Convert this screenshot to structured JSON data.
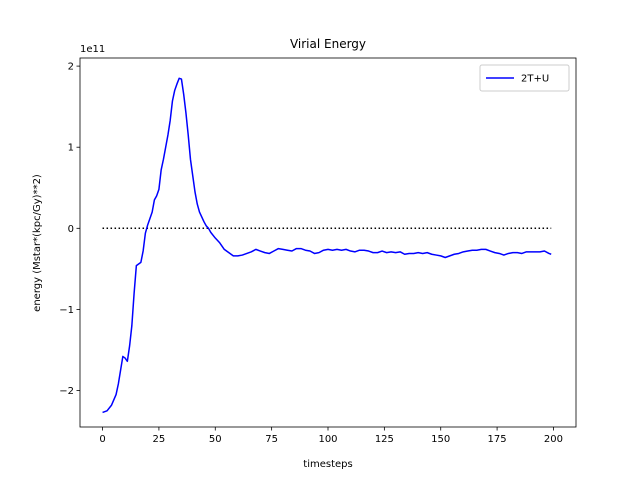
{
  "chart_data": {
    "type": "line",
    "title": "Virial Energy",
    "xlabel": "timesteps",
    "ylabel": "energy (Mstar*(kpc/Gy)**2)",
    "offset_text": "1e11",
    "xlim": [
      -10,
      210
    ],
    "ylim": [
      -2.45,
      2.1
    ],
    "x_ticks": [
      0,
      25,
      50,
      75,
      100,
      125,
      150,
      175,
      200
    ],
    "x_tick_labels": [
      "0",
      "25",
      "50",
      "75",
      "100",
      "125",
      "150",
      "175",
      "200"
    ],
    "y_ticks": [
      -2,
      -1,
      0,
      1,
      2
    ],
    "y_tick_labels": [
      "−2",
      "−1",
      "0",
      "1",
      "2"
    ],
    "grid": false,
    "legend_position": "top-right",
    "series": [
      {
        "name": "2T+U",
        "color": "#0000ff",
        "style": "solid",
        "points": [
          [
            0,
            -2.27
          ],
          [
            2,
            -2.25
          ],
          [
            4,
            -2.18
          ],
          [
            6,
            -2.05
          ],
          [
            7,
            -1.92
          ],
          [
            8,
            -1.75
          ],
          [
            9,
            -1.58
          ],
          [
            10,
            -1.6
          ],
          [
            11,
            -1.64
          ],
          [
            12,
            -1.45
          ],
          [
            13,
            -1.2
          ],
          [
            14,
            -0.8
          ],
          [
            15,
            -0.46
          ],
          [
            17,
            -0.42
          ],
          [
            18,
            -0.28
          ],
          [
            19,
            -0.06
          ],
          [
            20,
            0.04
          ],
          [
            21,
            0.12
          ],
          [
            22,
            0.2
          ],
          [
            23,
            0.35
          ],
          [
            24,
            0.4
          ],
          [
            25,
            0.48
          ],
          [
            26,
            0.72
          ],
          [
            27,
            0.85
          ],
          [
            28,
            1.0
          ],
          [
            29,
            1.15
          ],
          [
            30,
            1.33
          ],
          [
            31,
            1.57
          ],
          [
            32,
            1.7
          ],
          [
            33,
            1.78
          ],
          [
            34,
            1.85
          ],
          [
            35,
            1.84
          ],
          [
            36,
            1.65
          ],
          [
            37,
            1.42
          ],
          [
            38,
            1.15
          ],
          [
            39,
            0.85
          ],
          [
            40,
            0.65
          ],
          [
            41,
            0.45
          ],
          [
            42,
            0.3
          ],
          [
            43,
            0.2
          ],
          [
            44,
            0.14
          ],
          [
            45,
            0.08
          ],
          [
            46,
            0.03
          ],
          [
            47,
            0.0
          ],
          [
            48,
            -0.05
          ],
          [
            50,
            -0.12
          ],
          [
            52,
            -0.18
          ],
          [
            54,
            -0.26
          ],
          [
            56,
            -0.3
          ],
          [
            58,
            -0.34
          ],
          [
            60,
            -0.34
          ],
          [
            62,
            -0.33
          ],
          [
            64,
            -0.31
          ],
          [
            66,
            -0.29
          ],
          [
            68,
            -0.26
          ],
          [
            70,
            -0.28
          ],
          [
            72,
            -0.3
          ],
          [
            74,
            -0.31
          ],
          [
            76,
            -0.28
          ],
          [
            78,
            -0.25
          ],
          [
            80,
            -0.26
          ],
          [
            82,
            -0.27
          ],
          [
            84,
            -0.28
          ],
          [
            86,
            -0.25
          ],
          [
            88,
            -0.25
          ],
          [
            90,
            -0.27
          ],
          [
            92,
            -0.28
          ],
          [
            94,
            -0.31
          ],
          [
            96,
            -0.3
          ],
          [
            98,
            -0.27
          ],
          [
            100,
            -0.26
          ],
          [
            102,
            -0.27
          ],
          [
            104,
            -0.26
          ],
          [
            106,
            -0.27
          ],
          [
            108,
            -0.26
          ],
          [
            110,
            -0.28
          ],
          [
            112,
            -0.29
          ],
          [
            114,
            -0.27
          ],
          [
            116,
            -0.27
          ],
          [
            118,
            -0.28
          ],
          [
            120,
            -0.3
          ],
          [
            122,
            -0.3
          ],
          [
            124,
            -0.28
          ],
          [
            126,
            -0.3
          ],
          [
            128,
            -0.29
          ],
          [
            130,
            -0.3
          ],
          [
            132,
            -0.29
          ],
          [
            134,
            -0.32
          ],
          [
            136,
            -0.31
          ],
          [
            138,
            -0.31
          ],
          [
            140,
            -0.3
          ],
          [
            142,
            -0.31
          ],
          [
            144,
            -0.3
          ],
          [
            146,
            -0.32
          ],
          [
            148,
            -0.33
          ],
          [
            150,
            -0.34
          ],
          [
            152,
            -0.36
          ],
          [
            154,
            -0.34
          ],
          [
            156,
            -0.32
          ],
          [
            158,
            -0.31
          ],
          [
            160,
            -0.29
          ],
          [
            162,
            -0.28
          ],
          [
            164,
            -0.27
          ],
          [
            166,
            -0.27
          ],
          [
            168,
            -0.26
          ],
          [
            170,
            -0.26
          ],
          [
            172,
            -0.28
          ],
          [
            174,
            -0.3
          ],
          [
            176,
            -0.31
          ],
          [
            178,
            -0.33
          ],
          [
            180,
            -0.31
          ],
          [
            182,
            -0.3
          ],
          [
            184,
            -0.3
          ],
          [
            186,
            -0.31
          ],
          [
            188,
            -0.29
          ],
          [
            190,
            -0.29
          ],
          [
            192,
            -0.29
          ],
          [
            194,
            -0.29
          ],
          [
            196,
            -0.28
          ],
          [
            198,
            -0.31
          ],
          [
            199,
            -0.32
          ]
        ]
      }
    ],
    "reference_line": {
      "y": 0,
      "x_range": [
        0,
        199
      ],
      "color": "#000000",
      "style": "dotted"
    }
  }
}
